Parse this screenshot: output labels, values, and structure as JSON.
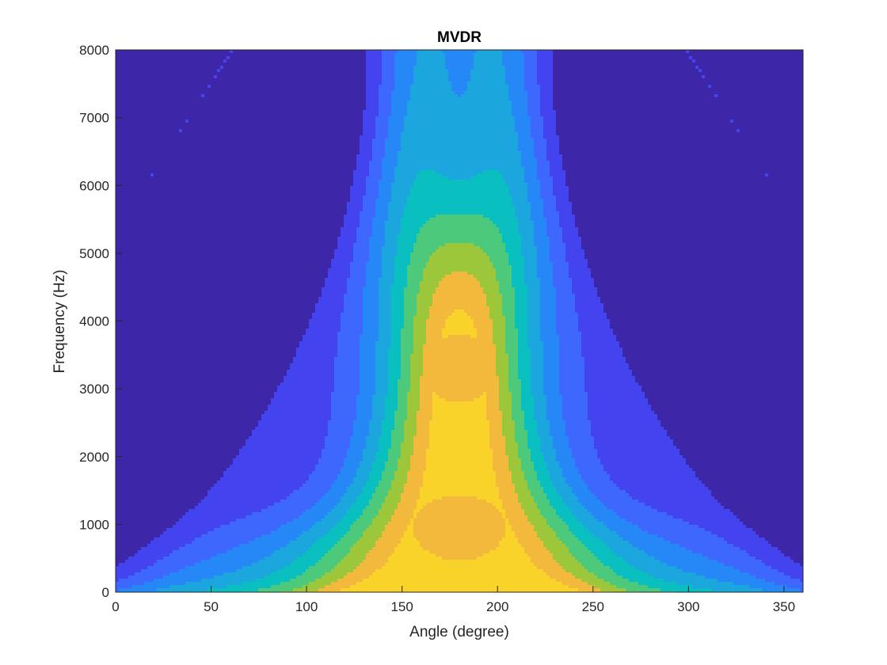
{
  "chart_data": {
    "type": "contour",
    "title": "MVDR",
    "xlabel": "Angle (degree)",
    "ylabel": "Frequency (Hz)",
    "xlim": [
      0,
      360
    ],
    "ylim": [
      0,
      8000
    ],
    "x_ticks": [
      0,
      50,
      100,
      150,
      200,
      250,
      300,
      350
    ],
    "y_ticks": [
      0,
      1000,
      2000,
      3000,
      4000,
      5000,
      6000,
      7000,
      8000
    ],
    "grid": false,
    "legend": "none",
    "colormap": "parula",
    "contour_line_color": "#000000",
    "levels": [
      {
        "level": 0,
        "color": "#3e26a8"
      },
      {
        "level": 1,
        "color": "#4443f0"
      },
      {
        "level": 2,
        "color": "#3d67fd"
      },
      {
        "level": 3,
        "color": "#2588f6"
      },
      {
        "level": 4,
        "color": "#1ba7dd"
      },
      {
        "level": 5,
        "color": "#0abfbf"
      },
      {
        "level": 6,
        "color": "#4cc97b"
      },
      {
        "level": 7,
        "color": "#9cc73a"
      },
      {
        "level": 8,
        "color": "#f2b93c"
      },
      {
        "level": 9,
        "color": "#f9d32a"
      }
    ],
    "main_lobe_center_deg": 180,
    "features": [
      {
        "name": "main-lobe",
        "x_range": [
          120,
          240
        ],
        "y_range": [
          0,
          8000
        ]
      },
      {
        "name": "island-mid",
        "center": [
          180,
          3300
        ],
        "radius_x_deg": 18,
        "radius_y_hz": 500
      },
      {
        "name": "island-low",
        "center": [
          180,
          950
        ],
        "radius_x_deg": 24,
        "radius_y_hz": 480
      },
      {
        "name": "notch-high",
        "center": [
          180,
          7300
        ],
        "x_range": [
          150,
          210
        ],
        "y_range": [
          4100,
          8000
        ]
      }
    ]
  }
}
